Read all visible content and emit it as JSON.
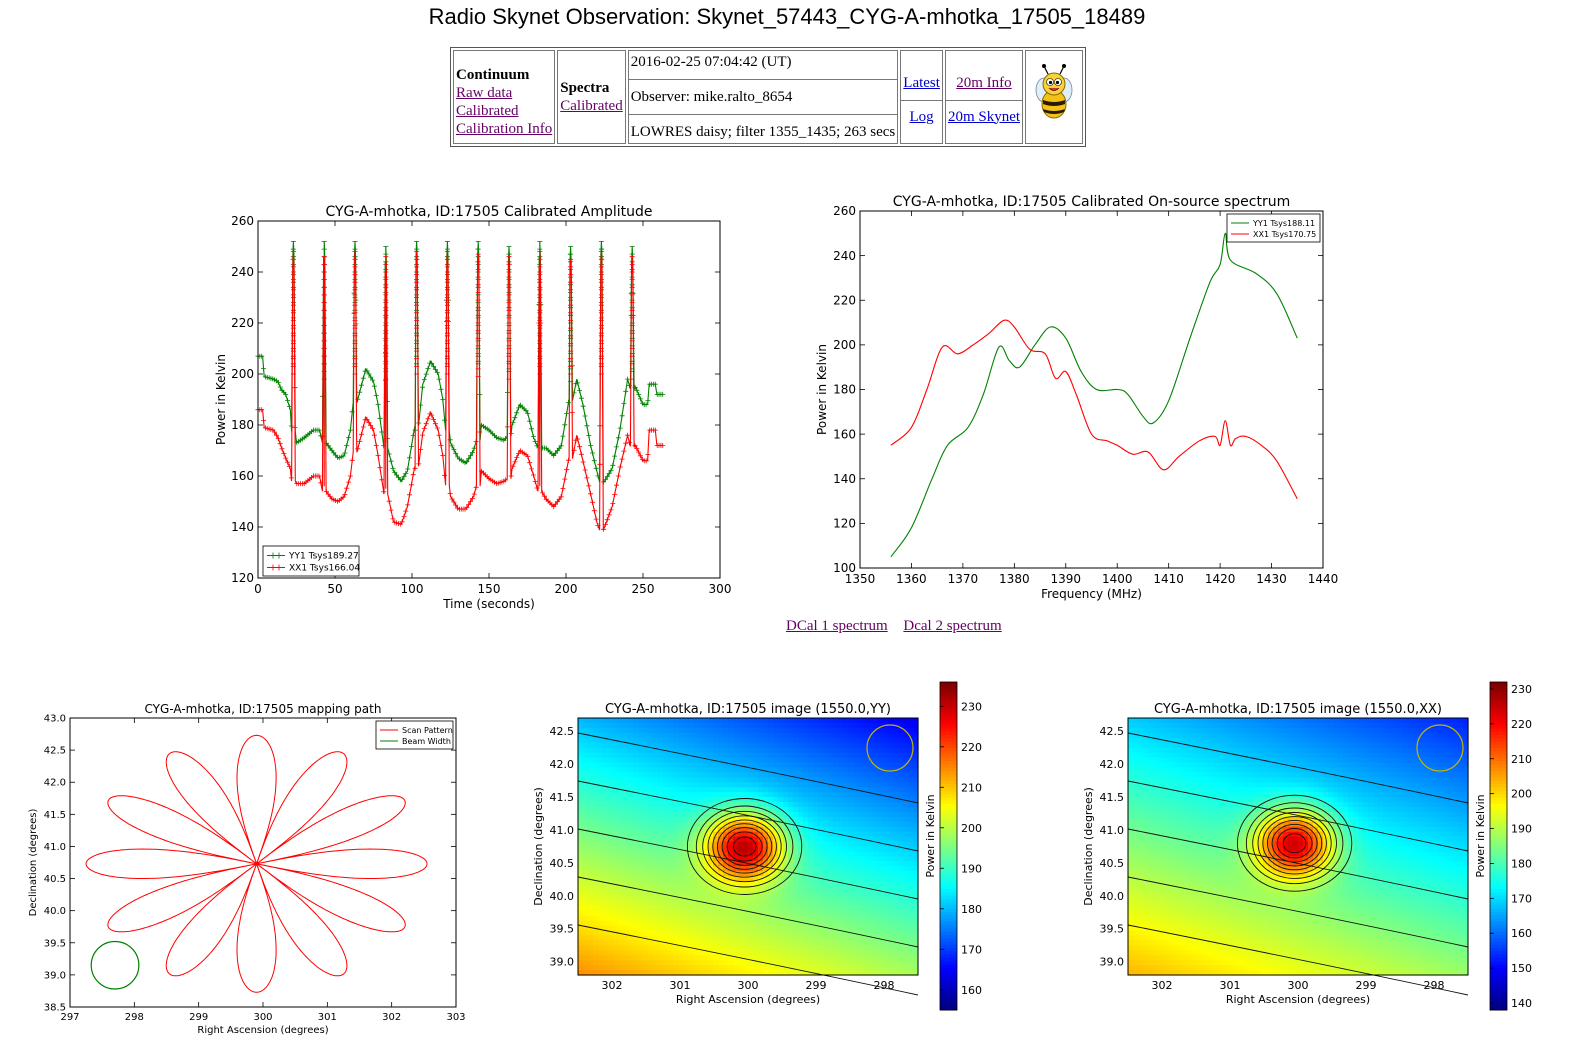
{
  "page": {
    "title": "Radio Skynet Observation: Skynet_57443_CYG-A-mhotka_17505_18489"
  },
  "info": {
    "continuum_heading": "Continuum",
    "continuum_links": [
      "Raw data",
      "Calibrated",
      "Calibration Info"
    ],
    "spectra_heading": "Spectra",
    "spectra_links": [
      "Calibrated"
    ],
    "datetime": "2016-02-25 07:04:42 (UT)",
    "observer": "Observer: mike.ralto_8654",
    "settings": "LOWRES daisy; filter 1355_1435; 263 secs",
    "nav_links": [
      "Latest",
      "Log"
    ],
    "telescope_links": [
      "20m Info",
      "20m Skynet"
    ],
    "logo_icon": "bee-icon"
  },
  "dcal_links": [
    "DCal 1 spectrum",
    "Dcal 2 spectrum"
  ],
  "chart_data": [
    {
      "type": "line",
      "title": "CYG-A-mhotka, ID:17505 Calibrated Amplitude",
      "xlabel": "Time (seconds)",
      "ylabel": "Power in Kelvin",
      "xlim": [
        0,
        300
      ],
      "ylim": [
        120,
        260
      ],
      "xticks": [
        0,
        50,
        100,
        150,
        200,
        250,
        300
      ],
      "yticks": [
        120,
        140,
        160,
        180,
        200,
        220,
        240,
        260
      ],
      "legend_position": "lower-left",
      "series": [
        {
          "name": "YY1 Tsys189.27",
          "color": "#008000",
          "markers": "plus",
          "base": [
            [
              0,
              207
            ],
            [
              3,
              207
            ],
            [
              4,
              199
            ],
            [
              10,
              198
            ],
            [
              13,
              197
            ],
            [
              15,
              194
            ],
            [
              18,
              192
            ],
            [
              21,
              186
            ],
            [
              25,
              173
            ],
            [
              30,
              175
            ],
            [
              36,
              178
            ],
            [
              40,
              178
            ],
            [
              43,
              175
            ],
            [
              48,
              170
            ],
            [
              52,
              167
            ],
            [
              56,
              168
            ],
            [
              60,
              178
            ],
            [
              64,
              195
            ],
            [
              70,
              202
            ],
            [
              75,
              197
            ],
            [
              78,
              188
            ],
            [
              83,
              173
            ],
            [
              88,
              162
            ],
            [
              93,
              158
            ],
            [
              97,
              162
            ],
            [
              102,
              178
            ],
            [
              107,
              196
            ],
            [
              112,
              205
            ],
            [
              117,
              200
            ],
            [
              120,
              190
            ],
            [
              125,
              173
            ],
            [
              130,
              167
            ],
            [
              135,
              165
            ],
            [
              140,
              170
            ],
            [
              145,
              180
            ],
            [
              150,
              178
            ],
            [
              155,
              175
            ],
            [
              160,
              174
            ],
            [
              165,
              180
            ],
            [
              170,
              188
            ],
            [
              175,
              185
            ],
            [
              179,
              175
            ],
            [
              183,
              173
            ],
            [
              187,
              171
            ],
            [
              192,
              168
            ],
            [
              197,
              172
            ],
            [
              202,
              190
            ],
            [
              207,
              198
            ],
            [
              211,
              188
            ],
            [
              216,
              172
            ],
            [
              220,
              162
            ],
            [
              225,
              158
            ],
            [
              230,
              163
            ],
            [
              235,
              178
            ],
            [
              240,
              198
            ],
            [
              245,
              195
            ],
            [
              250,
              188
            ],
            [
              253,
              188
            ],
            [
              254,
              196
            ],
            [
              258,
              196
            ],
            [
              259,
              192
            ],
            [
              263,
              192
            ]
          ],
          "peaks": [
            [
              23,
              252
            ],
            [
              43,
              252
            ],
            [
              63,
              252
            ],
            [
              83,
              250
            ],
            [
              103,
              252
            ],
            [
              123,
              252
            ],
            [
              143,
              252
            ],
            [
              163,
              250
            ],
            [
              183,
              252
            ],
            [
              203,
              250
            ],
            [
              223,
              252
            ],
            [
              243,
              250
            ]
          ]
        },
        {
          "name": "XX1 Tsys166.04",
          "color": "#ff0000",
          "markers": "plus",
          "base": [
            [
              0,
              186
            ],
            [
              3,
              186
            ],
            [
              4,
              179
            ],
            [
              10,
              178
            ],
            [
              13,
              175
            ],
            [
              16,
              170
            ],
            [
              18,
              167
            ],
            [
              21,
              163
            ],
            [
              25,
              157
            ],
            [
              30,
              157
            ],
            [
              36,
              160
            ],
            [
              40,
              160
            ],
            [
              43,
              156
            ],
            [
              48,
              151
            ],
            [
              52,
              150
            ],
            [
              56,
              152
            ],
            [
              60,
              160
            ],
            [
              64,
              175
            ],
            [
              70,
              183
            ],
            [
              75,
              178
            ],
            [
              78,
              168
            ],
            [
              83,
              155
            ],
            [
              88,
              142
            ],
            [
              93,
              141
            ],
            [
              97,
              148
            ],
            [
              102,
              163
            ],
            [
              107,
              177
            ],
            [
              112,
              185
            ],
            [
              117,
              178
            ],
            [
              120,
              168
            ],
            [
              125,
              152
            ],
            [
              130,
              147
            ],
            [
              135,
              147
            ],
            [
              140,
              152
            ],
            [
              145,
              162
            ],
            [
              150,
              159
            ],
            [
              155,
              157
            ],
            [
              160,
              158
            ],
            [
              165,
              163
            ],
            [
              170,
              170
            ],
            [
              175,
              168
            ],
            [
              179,
              160
            ],
            [
              183,
              156
            ],
            [
              187,
              151
            ],
            [
              192,
              148
            ],
            [
              197,
              152
            ],
            [
              202,
              167
            ],
            [
              207,
              176
            ],
            [
              211,
              166
            ],
            [
              216,
              153
            ],
            [
              220,
              142
            ],
            [
              225,
              140
            ],
            [
              230,
              148
            ],
            [
              235,
              163
            ],
            [
              240,
              176
            ],
            [
              245,
              172
            ],
            [
              250,
              166
            ],
            [
              253,
              166
            ],
            [
              254,
              178
            ],
            [
              258,
              178
            ],
            [
              259,
              172
            ],
            [
              263,
              172
            ]
          ],
          "peaks": [
            [
              23,
              248
            ],
            [
              43,
              246
            ],
            [
              63,
              248
            ],
            [
              83,
              246
            ],
            [
              103,
              248
            ],
            [
              123,
              248
            ],
            [
              143,
              247
            ],
            [
              163,
              246
            ],
            [
              183,
              248
            ],
            [
              203,
              245
            ],
            [
              223,
              248
            ],
            [
              243,
              246
            ]
          ]
        }
      ]
    },
    {
      "type": "line",
      "title": "CYG-A-mhotka, ID:17505 Calibrated On-source spectrum",
      "xlabel": "Frequency (MHz)",
      "ylabel": "Power in Kelvin",
      "xlim": [
        1350,
        1440
      ],
      "ylim": [
        100,
        260
      ],
      "xticks": [
        1350,
        1360,
        1370,
        1380,
        1390,
        1400,
        1410,
        1420,
        1430,
        1440
      ],
      "yticks": [
        100,
        120,
        140,
        160,
        180,
        200,
        220,
        240,
        260
      ],
      "legend_position": "top-right",
      "series": [
        {
          "name": "YY1 Tsys188.11",
          "color": "#008000",
          "points": [
            [
              1356,
              105
            ],
            [
              1360,
              118
            ],
            [
              1364,
              140
            ],
            [
              1367,
              155
            ],
            [
              1371,
              163
            ],
            [
              1374,
              178
            ],
            [
              1377,
              199
            ],
            [
              1379,
              193
            ],
            [
              1381,
              190
            ],
            [
              1384,
              200
            ],
            [
              1387,
              208
            ],
            [
              1390,
              203
            ],
            [
              1393,
              188
            ],
            [
              1396,
              180
            ],
            [
              1400,
              180
            ],
            [
              1402,
              178
            ],
            [
              1405,
              168
            ],
            [
              1407,
              165
            ],
            [
              1410,
              175
            ],
            [
              1414,
              202
            ],
            [
              1418,
              228
            ],
            [
              1420,
              236
            ],
            [
              1421,
              250
            ],
            [
              1422,
              238
            ],
            [
              1427,
              232
            ],
            [
              1431,
              223
            ],
            [
              1435,
              203
            ]
          ]
        },
        {
          "name": "XX1 Tsys170.75",
          "color": "#ff0000",
          "points": [
            [
              1356,
              155
            ],
            [
              1360,
              163
            ],
            [
              1363,
              180
            ],
            [
              1366,
              199
            ],
            [
              1369,
              196
            ],
            [
              1372,
              200
            ],
            [
              1375,
              205
            ],
            [
              1378,
              211
            ],
            [
              1380,
              208
            ],
            [
              1383,
              198
            ],
            [
              1386,
              196
            ],
            [
              1388,
              185
            ],
            [
              1390,
              188
            ],
            [
              1392,
              178
            ],
            [
              1395,
              160
            ],
            [
              1398,
              157
            ],
            [
              1400,
              155
            ],
            [
              1403,
              151
            ],
            [
              1406,
              152
            ],
            [
              1409,
              144
            ],
            [
              1412,
              150
            ],
            [
              1416,
              157
            ],
            [
              1419,
              159
            ],
            [
              1420,
              155
            ],
            [
              1421,
              166
            ],
            [
              1422,
              155
            ],
            [
              1423,
              158
            ],
            [
              1425,
              159
            ],
            [
              1428,
              155
            ],
            [
              1431,
              148
            ],
            [
              1435,
              131
            ]
          ]
        }
      ]
    },
    {
      "type": "line",
      "title": "CYG-A-mhotka, ID:17505 mapping path",
      "xlabel": "Right Ascension (degrees)",
      "ylabel": "Declination (degrees)",
      "xlim": [
        297,
        303
      ],
      "ylim": [
        38.5,
        43.0
      ],
      "xticks": [
        297,
        298,
        299,
        300,
        301,
        302,
        303
      ],
      "yticks": [
        38.5,
        39.0,
        39.5,
        40.0,
        40.5,
        41.0,
        41.5,
        42.0,
        42.5,
        43.0
      ],
      "legend_position": "top-right",
      "series": [
        {
          "name": "Scan Pattern",
          "color": "#ff0000",
          "center": [
            299.9,
            40.73
          ],
          "petals": 12,
          "radius_ra": 2.65,
          "radius_dec": 2.0
        },
        {
          "name": "Beam Width",
          "color": "#008000",
          "circle_center": [
            297.7,
            39.15
          ],
          "circle_radius": 0.37
        }
      ]
    },
    {
      "type": "heatmap",
      "title": "CYG-A-mhotka, ID:17505 image (1550.0,YY)",
      "xlabel": "Right Ascension (degrees)",
      "ylabel": "Declination (degrees)",
      "colorbar_label": "Power in Kelvin",
      "xlim": [
        302.5,
        297.5
      ],
      "ylim": [
        38.8,
        42.7
      ],
      "xticks": [
        302,
        301,
        300,
        299,
        298
      ],
      "yticks": [
        39.0,
        39.5,
        40.0,
        40.5,
        41.0,
        41.5,
        42.0,
        42.5
      ],
      "color_range": [
        155,
        236
      ],
      "colorbar_ticks": [
        160,
        170,
        180,
        190,
        200,
        210,
        220,
        230
      ],
      "source": {
        "ra": 300.05,
        "dec": 40.75,
        "peak": 236
      }
    },
    {
      "type": "heatmap",
      "title": "CYG-A-mhotka, ID:17505 image (1550.0,XX)",
      "xlabel": "Right Ascension (degrees)",
      "ylabel": "Declination (degrees)",
      "colorbar_label": "Power in Kelvin",
      "xlim": [
        302.5,
        297.5
      ],
      "ylim": [
        38.8,
        42.7
      ],
      "xticks": [
        302,
        301,
        300,
        299,
        298
      ],
      "yticks": [
        39.0,
        39.5,
        40.0,
        40.5,
        41.0,
        41.5,
        42.0,
        42.5
      ],
      "color_range": [
        138,
        232
      ],
      "colorbar_ticks": [
        140,
        150,
        160,
        170,
        180,
        190,
        200,
        210,
        220,
        230
      ],
      "source": {
        "ra": 300.05,
        "dec": 40.8,
        "peak": 230
      }
    }
  ]
}
